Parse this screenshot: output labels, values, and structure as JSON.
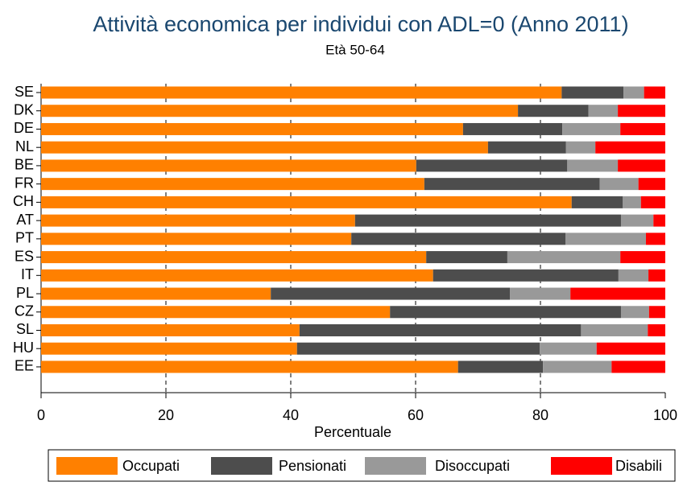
{
  "chart_data": {
    "type": "stacked-bar-horizontal",
    "title": "Attività economica per individui con ADL=0 (Anno 2011)",
    "subtitle": "Età 50-64",
    "x_label": "Percentuale",
    "categories": [
      "SE",
      "DK",
      "DE",
      "NL",
      "BE",
      "FR",
      "CH",
      "AT",
      "PT",
      "ES",
      "IT",
      "PL",
      "CZ",
      "SL",
      "HU",
      "EE"
    ],
    "series": [
      {
        "name": "Occupati",
        "color": "#ff8000",
        "values": [
          83.4,
          76.4,
          67.6,
          71.6,
          60.1,
          61.4,
          85.0,
          50.3,
          49.7,
          61.7,
          62.8,
          36.8,
          55.9,
          41.4,
          41.0,
          66.8
        ]
      },
      {
        "name": "Pensionati",
        "color": "#4d4d4d",
        "values": [
          9.9,
          11.3,
          15.9,
          12.5,
          24.2,
          28.1,
          8.2,
          42.6,
          34.3,
          13.0,
          29.7,
          38.3,
          37.0,
          45.1,
          38.9,
          13.6
        ]
      },
      {
        "name": "Disoccupati",
        "color": "#999999",
        "values": [
          3.3,
          4.7,
          9.3,
          4.7,
          8.1,
          6.2,
          2.9,
          5.2,
          12.9,
          18.1,
          4.8,
          9.7,
          4.5,
          10.7,
          9.1,
          11.0
        ]
      },
      {
        "name": "Disabili",
        "color": "#ff0000",
        "values": [
          3.4,
          7.6,
          7.2,
          11.2,
          7.6,
          4.3,
          3.9,
          1.9,
          3.1,
          7.2,
          2.7,
          15.2,
          2.6,
          2.8,
          11.0,
          8.6
        ]
      }
    ],
    "xlim": [
      0,
      100
    ],
    "xticks": [
      0,
      20,
      40,
      60,
      80,
      100
    ],
    "grid": true,
    "legend": "bottom"
  }
}
